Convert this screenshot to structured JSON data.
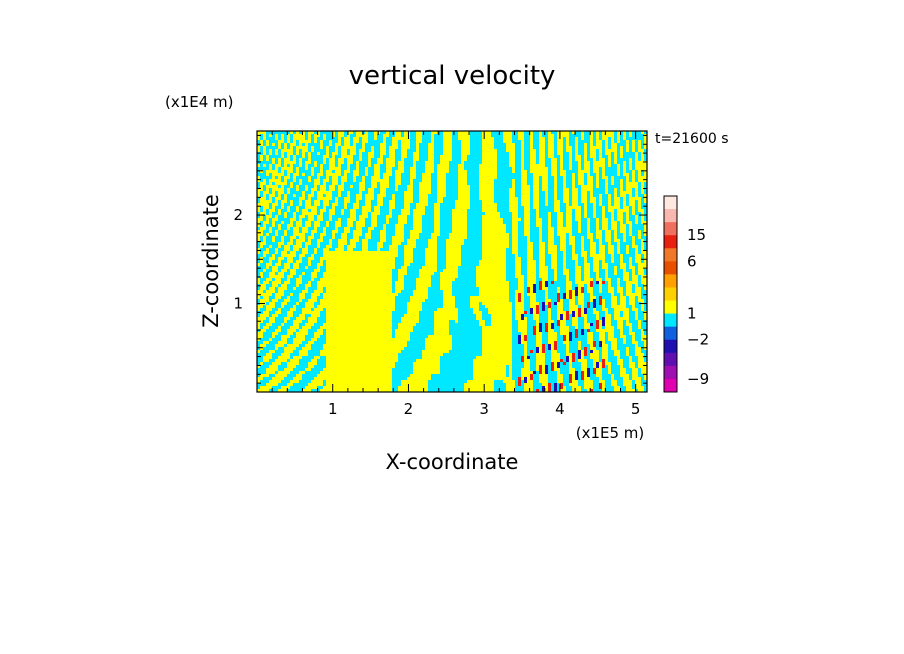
{
  "chart_data": {
    "type": "heatmap",
    "title": "vertical velocity",
    "xlabel": "X-coordinate",
    "ylabel": "Z-coordinate",
    "x_unit": "(x1E5 m)",
    "y_unit": "(x1E4 m)",
    "time_label": "t=21600 s",
    "xlim": [
      0,
      5.15
    ],
    "ylim": [
      0,
      2.95
    ],
    "x_ticks": [
      1,
      2,
      3,
      4,
      5
    ],
    "y_ticks": [
      1,
      2
    ],
    "field": "w (vertical velocity); predominantly weak values (yellow ≈ slightly positive, cyan ≈ slightly negative) in tilted banded wave patterns, with stronger positive (red) and negative (blue/purple) cells concentrated near x ≈ 3.5–4.5, z < 1.3",
    "colorbar": {
      "levels": [
        {
          "color": "#ffe8e0"
        },
        {
          "color": "#f8b8b0"
        },
        {
          "color": "#f07060",
          "label": "15"
        },
        {
          "color": "#e82010"
        },
        {
          "color": "#f07828",
          "label": "6"
        },
        {
          "color": "#e85000"
        },
        {
          "color": "#ffa000"
        },
        {
          "color": "#ffd000"
        },
        {
          "color": "#ffff00",
          "label": "1"
        },
        {
          "color": "#00e8ff"
        },
        {
          "color": "#1060e0",
          "label": "−2"
        },
        {
          "color": "#2010b0"
        },
        {
          "color": "#6010b0"
        },
        {
          "color": "#a010b0",
          "label": "−9"
        },
        {
          "color": "#e000b0"
        }
      ]
    },
    "colors": {
      "positive_weak": "#ffff00",
      "negative_weak": "#00e8ff",
      "strong_positive": "#e82010",
      "strong_negative": "#2010b0"
    }
  }
}
